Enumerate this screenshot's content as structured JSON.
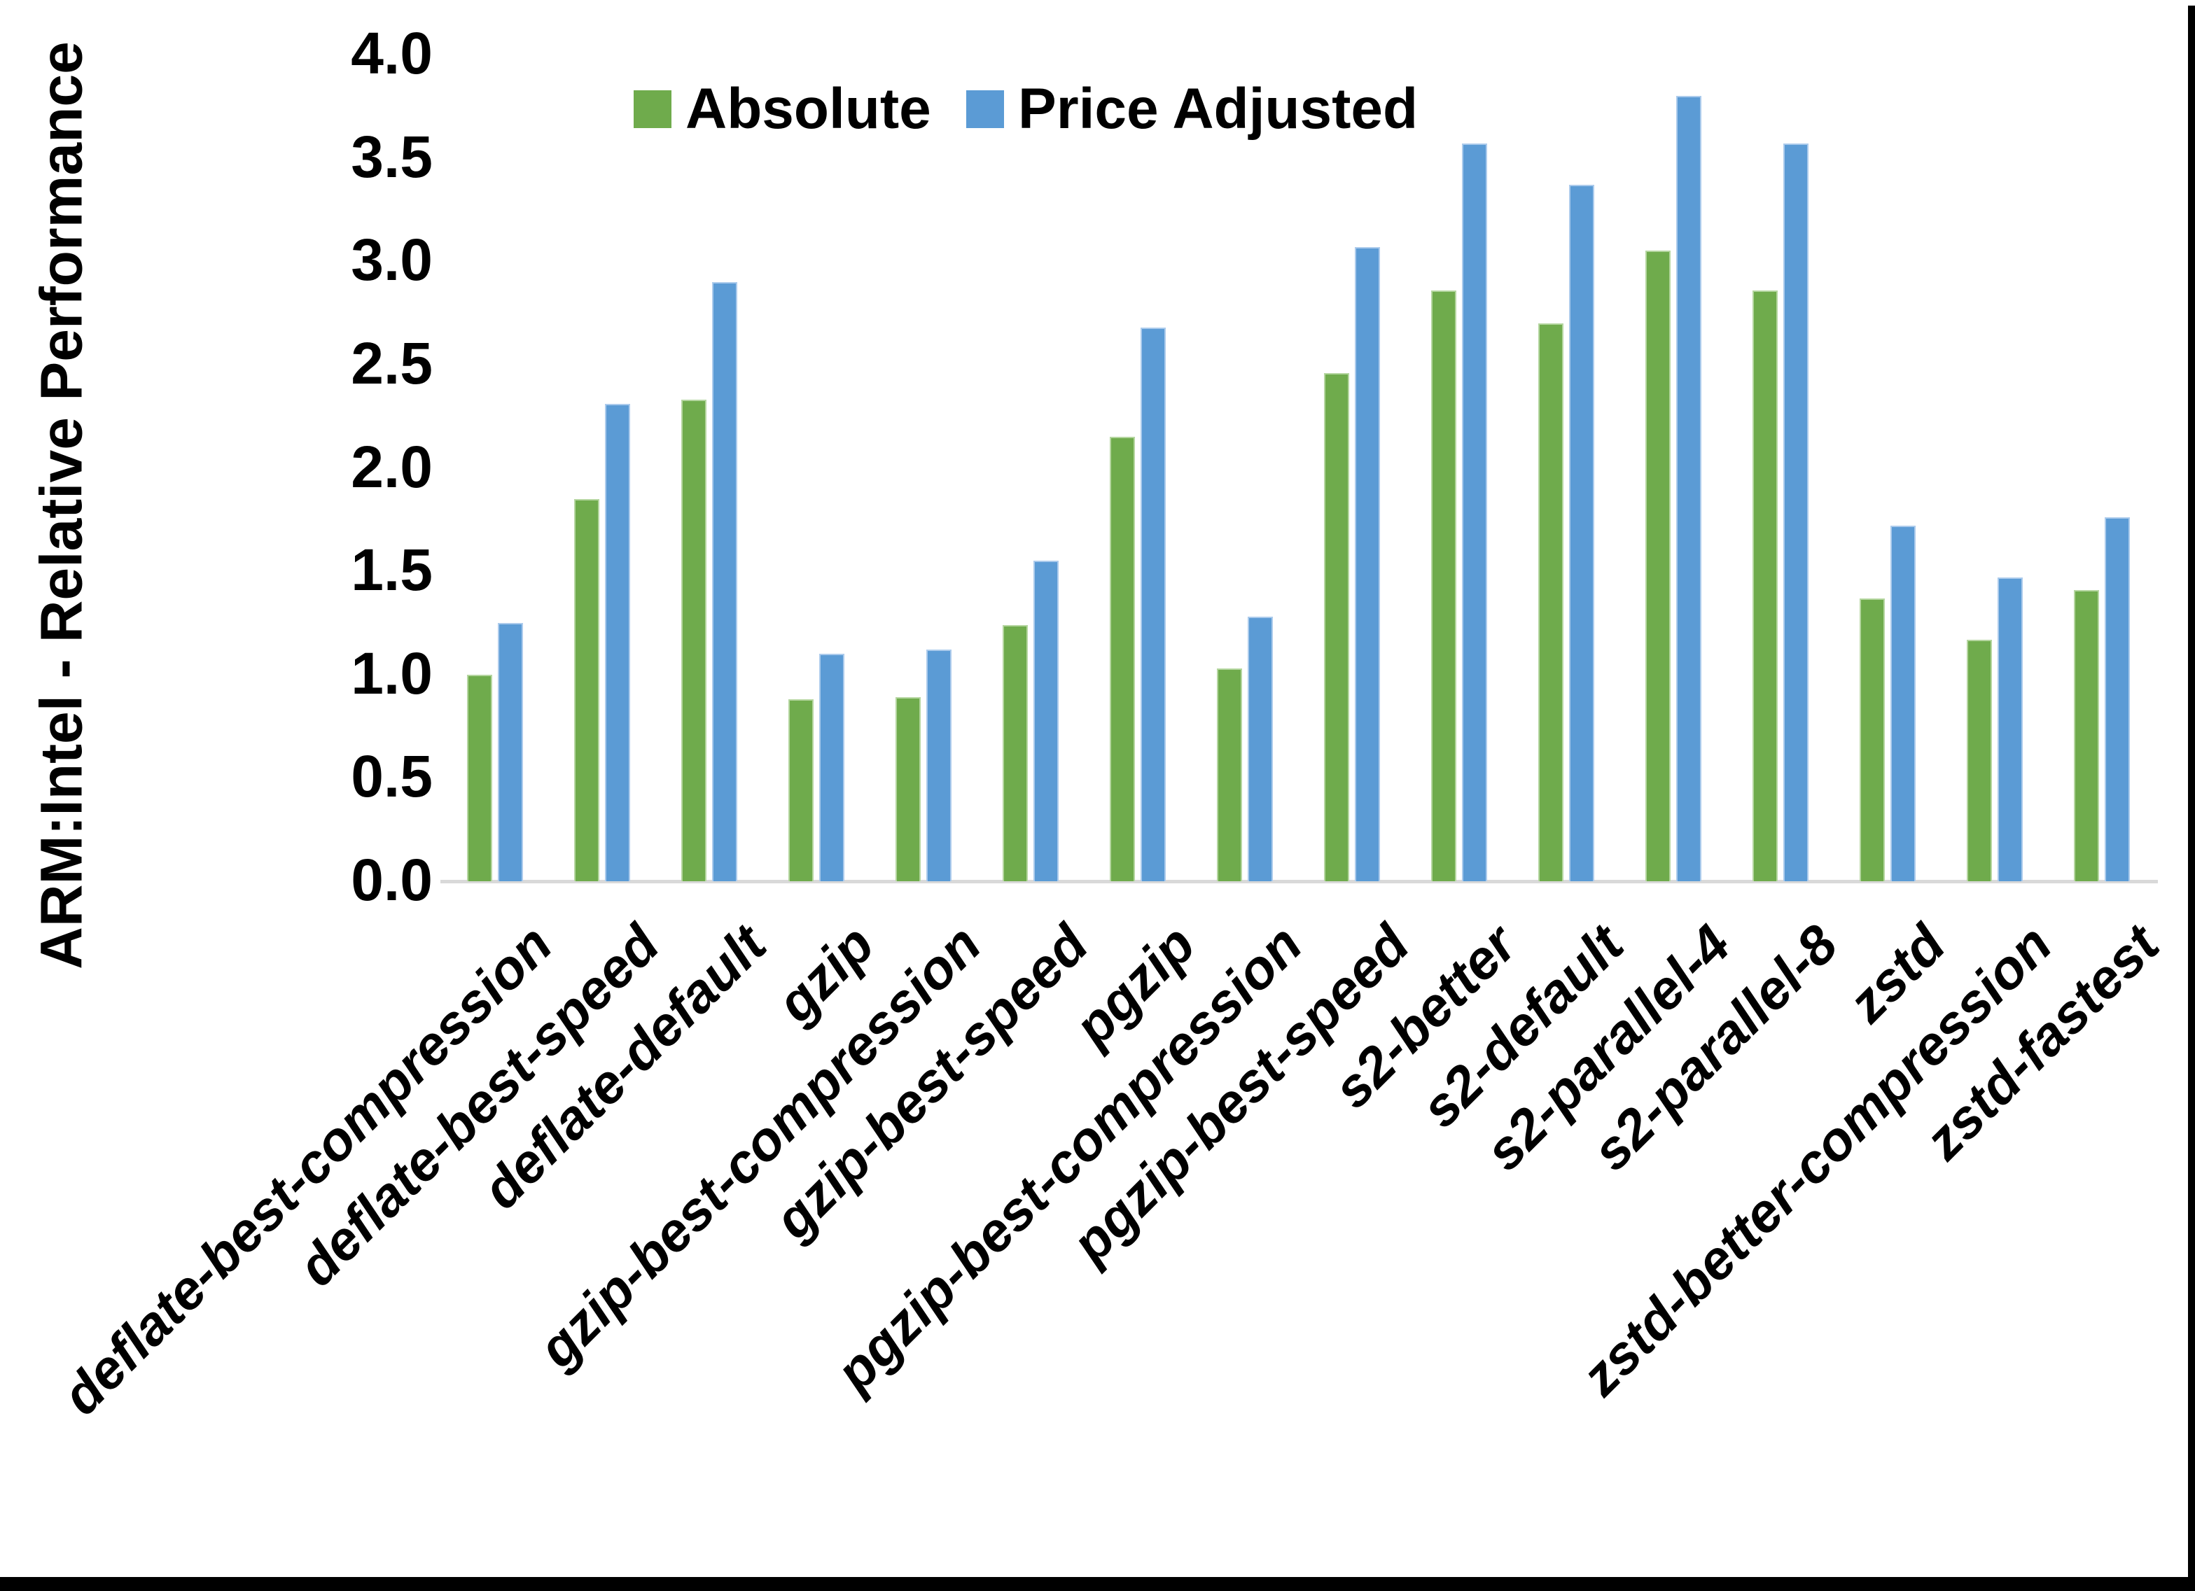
{
  "y_axis": {
    "title": "ARM:Intel - Relative Performance",
    "ticks": [
      "0.0",
      "0.5",
      "1.0",
      "1.5",
      "2.0",
      "2.5",
      "3.0",
      "3.5",
      "4.0"
    ]
  },
  "chart_data": {
    "type": "bar",
    "title": "",
    "ylabel": "ARM:Intel - Relative Performance",
    "xlabel": "",
    "ylim": [
      0,
      4
    ],
    "ytick_step": 0.5,
    "grid": false,
    "legend_position": "top",
    "categories": [
      "deflate-best-compression",
      "deflate-best-speed",
      "deflate-default",
      "gzip",
      "gzip-best-compression",
      "gzip-best-speed",
      "pgzip",
      "pgzip-best-compression",
      "pgzip-best-speed",
      "s2-better",
      "s2-default",
      "s2-parallel-4",
      "s2-parallel-8",
      "zstd",
      "zstd-better-compression",
      "zstd-fastest"
    ],
    "series": [
      {
        "name": "Absolute",
        "color": "#6FAB4C",
        "edge_color": "#B5D6A0",
        "values": [
          1.0,
          1.85,
          2.33,
          0.88,
          0.89,
          1.24,
          2.15,
          1.03,
          2.46,
          2.86,
          2.7,
          3.05,
          2.86,
          1.37,
          1.17,
          1.41
        ]
      },
      {
        "name": "Price Adjusted",
        "color": "#5B9BD5",
        "edge_color": "#ACCBEC",
        "values": [
          1.25,
          2.31,
          2.9,
          1.1,
          1.12,
          1.55,
          2.68,
          1.28,
          3.07,
          3.57,
          3.37,
          3.8,
          3.57,
          1.72,
          1.47,
          1.76
        ]
      }
    ],
    "axis_line_color": "#D9D9D9"
  }
}
